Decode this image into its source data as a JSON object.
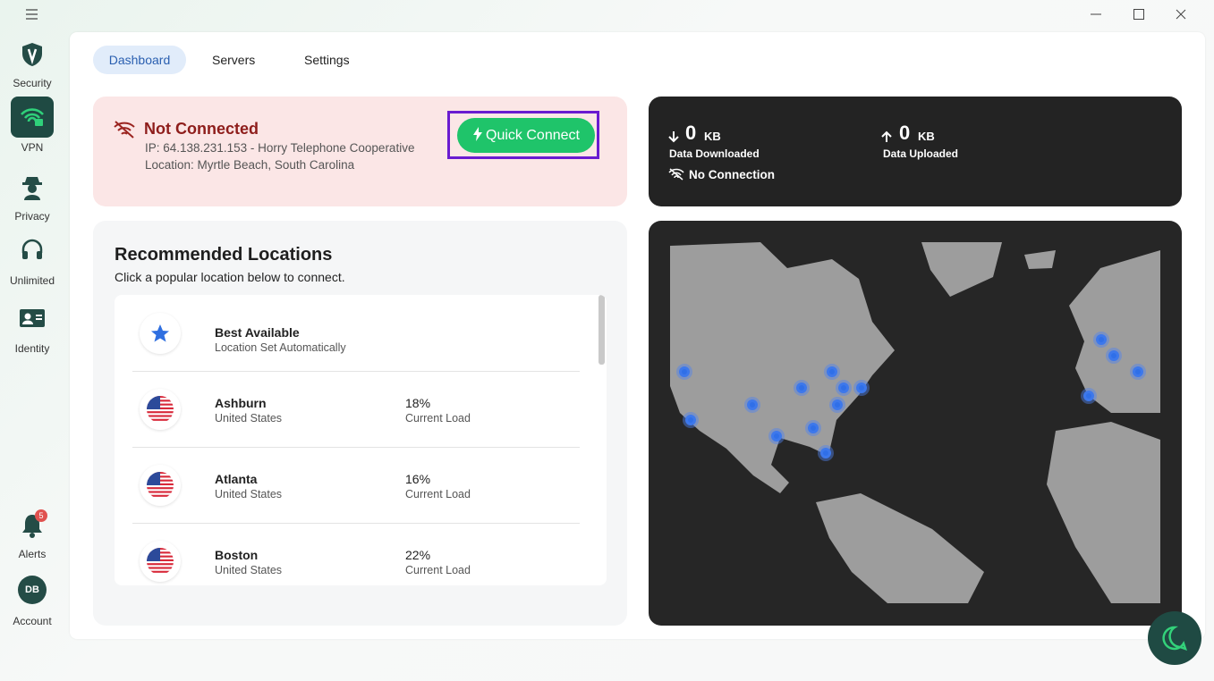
{
  "sidebar": {
    "items": [
      {
        "label": "Security"
      },
      {
        "label": "VPN"
      },
      {
        "label": "Privacy"
      },
      {
        "label": "Unlimited"
      },
      {
        "label": "Identity"
      }
    ],
    "alerts": {
      "label": "Alerts",
      "badge": "5"
    },
    "account": {
      "initials": "DB",
      "label": "Account"
    }
  },
  "tabs": [
    "Dashboard",
    "Servers",
    "Settings"
  ],
  "status": {
    "title": "Not Connected",
    "ip": "IP: 64.138.231.153 - Horry Telephone Cooperative",
    "location": "Location: Myrtle Beach, South Carolina",
    "button": "Quick Connect"
  },
  "stats": {
    "downloaded": {
      "value": "0",
      "unit": "KB",
      "label": "Data Downloaded"
    },
    "uploaded": {
      "value": "0",
      "unit": "KB",
      "label": "Data Uploaded"
    },
    "connection": "No Connection"
  },
  "recommended": {
    "title": "Recommended Locations",
    "subtitle": "Click a popular location below to connect.",
    "locations": [
      {
        "name": "Best Available",
        "detail": "Location Set Automatically"
      },
      {
        "name": "Ashburn",
        "detail": "United States",
        "load": "18%",
        "load_label": "Current Load"
      },
      {
        "name": "Atlanta",
        "detail": "United States",
        "load": "16%",
        "load_label": "Current Load"
      },
      {
        "name": "Boston",
        "detail": "United States",
        "load": "22%",
        "load_label": "Current Load"
      }
    ]
  }
}
